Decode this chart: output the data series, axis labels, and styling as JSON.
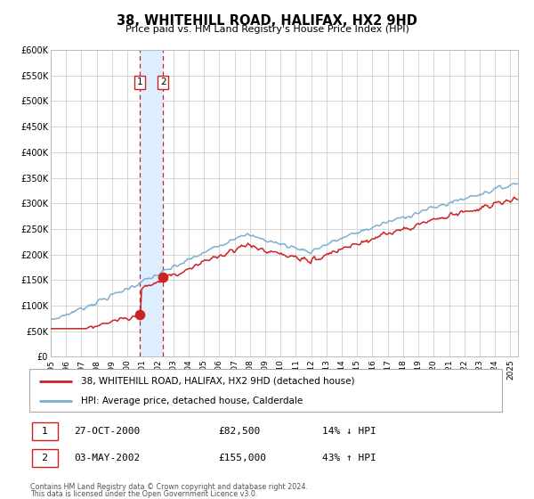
{
  "title": "38, WHITEHILL ROAD, HALIFAX, HX2 9HD",
  "subtitle": "Price paid vs. HM Land Registry's House Price Index (HPI)",
  "legend_line1": "38, WHITEHILL ROAD, HALIFAX, HX2 9HD (detached house)",
  "legend_line2": "HPI: Average price, detached house, Calderdale",
  "transaction1_label": "1",
  "transaction1_date": "27-OCT-2000",
  "transaction1_price": "£82,500",
  "transaction1_hpi": "14% ↓ HPI",
  "transaction2_label": "2",
  "transaction2_date": "03-MAY-2002",
  "transaction2_price": "£155,000",
  "transaction2_hpi": "43% ↑ HPI",
  "footnote1": "Contains HM Land Registry data © Crown copyright and database right 2024.",
  "footnote2": "This data is licensed under the Open Government Licence v3.0.",
  "hpi_color": "#7bafd4",
  "price_color": "#cc2222",
  "point_color": "#cc2222",
  "vline_color": "#cc2222",
  "shade_color": "#ddeeff",
  "ylim_min": 0,
  "ylim_max": 600000,
  "xmin": 1995.0,
  "xmax": 2025.5,
  "transaction1_x": 2000.82,
  "transaction1_y": 82500,
  "transaction2_x": 2002.33,
  "transaction2_y": 155000,
  "yticks": [
    0,
    50000,
    100000,
    150000,
    200000,
    250000,
    300000,
    350000,
    400000,
    450000,
    500000,
    550000,
    600000
  ],
  "ytick_labels": [
    "£0",
    "£50K",
    "£100K",
    "£150K",
    "£200K",
    "£250K",
    "£300K",
    "£350K",
    "£400K",
    "£450K",
    "£500K",
    "£550K",
    "£600K"
  ]
}
